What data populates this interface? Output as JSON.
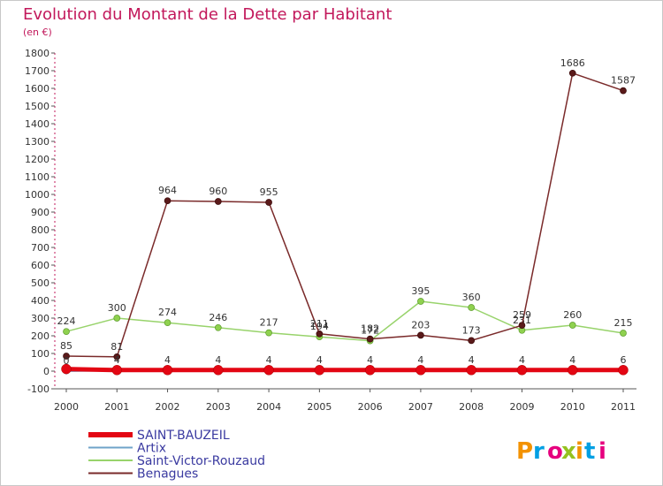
{
  "chart_data": {
    "type": "line",
    "title": "Evolution du Montant de la Dette par Habitant",
    "subtitle": "(en €)",
    "x": [
      "2000",
      "2001",
      "2002",
      "2003",
      "2004",
      "2005",
      "2006",
      "2007",
      "2008",
      "2009",
      "2010",
      "2011"
    ],
    "ylim": [
      -100,
      1800
    ],
    "yticks": [
      -100,
      0,
      100,
      200,
      300,
      400,
      500,
      600,
      700,
      800,
      900,
      1000,
      1100,
      1200,
      1300,
      1400,
      1500,
      1600,
      1700,
      1800
    ],
    "grid": false,
    "legend_position": "bottom-left",
    "series": [
      {
        "name": "SAINT-BAUZEIL",
        "color": "#e30613",
        "values": [
          12,
          6,
          6,
          6,
          6,
          6,
          6,
          6,
          6,
          6,
          6,
          6
        ],
        "labels": [
          "",
          "",
          "",
          "",
          "",
          "",
          "",
          "",
          "",
          "",
          "",
          ""
        ]
      },
      {
        "name": "Artix",
        "color": "#6fa3c9",
        "values": [
          0,
          4,
          4,
          4,
          4,
          4,
          4,
          4,
          4,
          4,
          4,
          6
        ],
        "labels": [
          "0",
          "4",
          "4",
          "4",
          "4",
          "4",
          "4",
          "4",
          "4",
          "4",
          "4",
          "6"
        ]
      },
      {
        "name": "Saint-Victor-Rouzaud",
        "color": "#98d36b",
        "values": [
          224,
          300,
          274,
          246,
          217,
          194,
          172,
          395,
          360,
          231,
          260,
          215
        ],
        "labels": [
          "224",
          "300",
          "274",
          "246",
          "217",
          "194",
          "172",
          "395",
          "360",
          "231",
          "260",
          "215"
        ]
      },
      {
        "name": "Benagues",
        "color": "#7a2a2a",
        "values": [
          85,
          81,
          964,
          960,
          955,
          211,
          182,
          203,
          173,
          259,
          1686,
          1587
        ],
        "labels": [
          "85",
          "81",
          "964",
          "960",
          "955",
          "211",
          "182",
          "203",
          "173",
          "259",
          "1686",
          "1587"
        ]
      }
    ]
  },
  "brand": {
    "text": "Proxiti"
  }
}
